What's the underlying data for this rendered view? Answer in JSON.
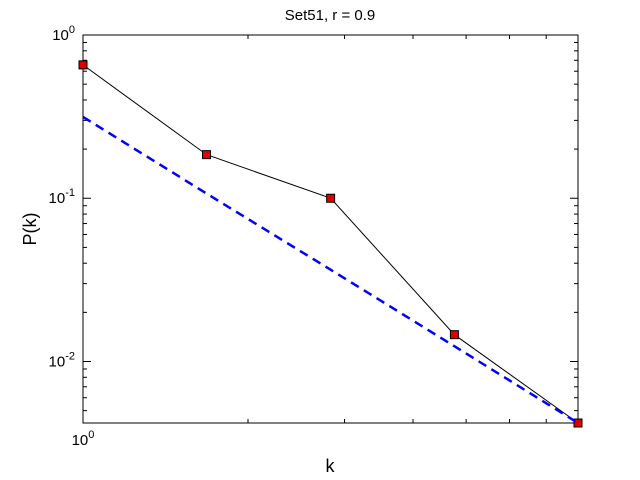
{
  "chart_data": {
    "type": "line",
    "title": "Set51, r = 0.9",
    "x_label": "k",
    "y_label": "P(k)",
    "x": [
      1,
      1.68,
      2.83,
      4.76,
      8
    ],
    "series": [
      {
        "name": "data",
        "color": "#000000",
        "marker_color": "#dd0000",
        "dashed": false,
        "markers": true,
        "values": [
          0.656,
          0.185,
          0.1,
          0.0146,
          0.0042
        ]
      },
      {
        "name": "fit",
        "color": "#0000ff",
        "dashed": true,
        "markers": false,
        "values": [
          0.315,
          0.107,
          0.0365,
          0.0124,
          0.0042
        ]
      }
    ],
    "xlim": [
      1,
      8
    ],
    "ylim": [
      0.0042,
      1
    ],
    "xlog": true,
    "ylog": true,
    "xticks": [
      {
        "value": 1,
        "label": "10",
        "exponent": "0"
      }
    ],
    "yticks": [
      {
        "value": 0.01,
        "label": "10",
        "exponent": "-2"
      },
      {
        "value": 0.1,
        "label": "10",
        "exponent": "-1"
      },
      {
        "value": 1,
        "label": "10",
        "exponent": "0"
      }
    ],
    "grid": false,
    "legend": false
  }
}
